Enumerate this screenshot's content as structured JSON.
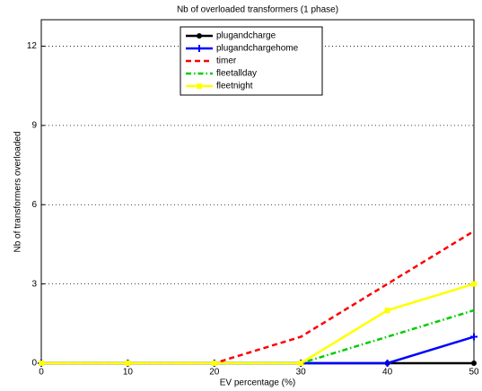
{
  "chart_data": {
    "type": "line",
    "title": "Nb of overloaded transformers (1 phase)",
    "xlabel": "EV percentage (%)",
    "ylabel": "Nb of transformers overloaded",
    "x": [
      0,
      10,
      20,
      30,
      40,
      50
    ],
    "xlim": [
      0,
      50
    ],
    "xticks": [
      0,
      10,
      20,
      30,
      40,
      50
    ],
    "ylim": [
      0,
      13
    ],
    "yticks": [
      0,
      3,
      6,
      9,
      12
    ],
    "grid": "y",
    "legend": "top-center",
    "series": [
      {
        "name": "plugandcharge",
        "color": "#000000",
        "linestyle": "solid",
        "marker": "circle",
        "values": [
          0,
          0,
          0,
          0,
          0,
          0
        ]
      },
      {
        "name": "plugandchargehome",
        "color": "#0000ff",
        "linestyle": "solid",
        "marker": "plus",
        "values": [
          0,
          0,
          0,
          0,
          0,
          1
        ]
      },
      {
        "name": "timer",
        "color": "#ff0000",
        "linestyle": "dashed",
        "marker": "none",
        "values": [
          0,
          0,
          0,
          1,
          3,
          5
        ]
      },
      {
        "name": "fleetallday",
        "color": "#00cc00",
        "linestyle": "dashdot",
        "marker": "none",
        "values": [
          0,
          0,
          0,
          0,
          1,
          2
        ]
      },
      {
        "name": "fleetnight",
        "color": "#ffff00",
        "linestyle": "solid",
        "marker": "square",
        "values": [
          0,
          0,
          0,
          0,
          2,
          3
        ]
      }
    ]
  }
}
